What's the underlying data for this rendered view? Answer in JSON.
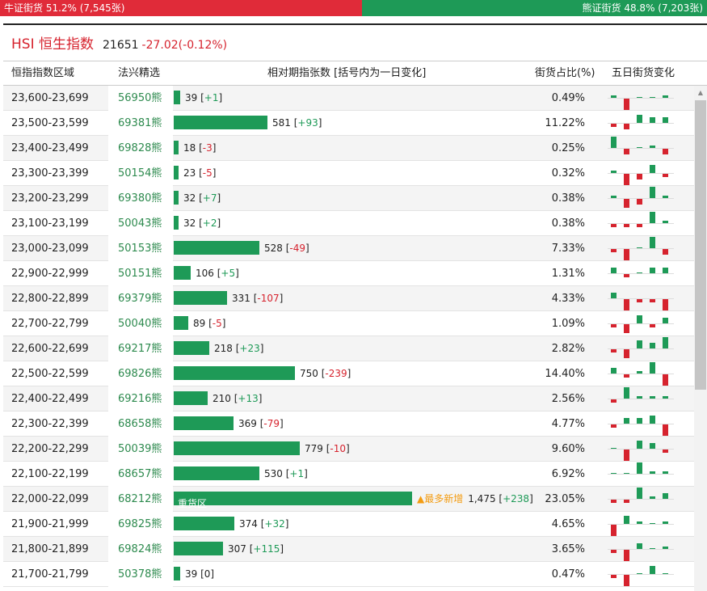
{
  "ratio": {
    "bull_text": "牛证街货 51.2% (7,545张)",
    "bull_pct": 51.2,
    "bear_text": "熊证街货 48.8% (7,203张)",
    "bear_pct": 48.8
  },
  "header": {
    "title": "HSI 恒生指数",
    "index_value": "21651",
    "index_change": "-27.02(-0.12%)"
  },
  "columns": {
    "range": "恒指指数区域",
    "pick": "法兴精选",
    "change": "相对期指张数 [括号内为一日变化]",
    "share": "街货占比(%)",
    "five_day": "五日街货变化"
  },
  "max_count": 1475,
  "rows": [
    {
      "range": "23,600-23,699",
      "code": "56950熊",
      "count": 39,
      "count_text": "39",
      "delta": "+1",
      "pct": "0.49%",
      "spark": [
        1,
        -4,
        0,
        0,
        1
      ]
    },
    {
      "range": "23,500-23,599",
      "code": "69381熊",
      "count": 581,
      "count_text": "581",
      "delta": "+93",
      "pct": "11.22%",
      "spark": [
        -1,
        -2,
        3,
        2,
        2
      ]
    },
    {
      "range": "23,400-23,499",
      "code": "69828熊",
      "count": 18,
      "count_text": "18",
      "delta": "-3",
      "pct": "0.25%",
      "spark": [
        4,
        -2,
        0,
        1,
        -2
      ]
    },
    {
      "range": "23,300-23,399",
      "code": "50154熊",
      "count": 23,
      "count_text": "23",
      "delta": "-5",
      "pct": "0.32%",
      "spark": [
        1,
        -4,
        -2,
        3,
        -1
      ]
    },
    {
      "range": "23,200-23,299",
      "code": "69380熊",
      "count": 32,
      "count_text": "32",
      "delta": "+7",
      "pct": "0.38%",
      "spark": [
        1,
        -3,
        -2,
        4,
        1
      ]
    },
    {
      "range": "23,100-23,199",
      "code": "50043熊",
      "count": 32,
      "count_text": "32",
      "delta": "+2",
      "pct": "0.38%",
      "spark": [
        -1,
        -1,
        -1,
        4,
        1
      ]
    },
    {
      "range": "23,000-23,099",
      "code": "50153熊",
      "count": 528,
      "count_text": "528",
      "delta": "-49",
      "pct": "7.33%",
      "spark": [
        -1,
        -4,
        0,
        4,
        -2
      ]
    },
    {
      "range": "22,900-22,999",
      "code": "50151熊",
      "count": 106,
      "count_text": "106",
      "delta": "+5",
      "pct": "1.31%",
      "spark": [
        2,
        -1,
        0,
        2,
        2
      ]
    },
    {
      "range": "22,800-22,899",
      "code": "69379熊",
      "count": 331,
      "count_text": "331",
      "delta": "-107",
      "pct": "4.33%",
      "spark": [
        2,
        -4,
        -1,
        -1,
        -4
      ]
    },
    {
      "range": "22,700-22,799",
      "code": "50040熊",
      "count": 89,
      "count_text": "89",
      "delta": "-5",
      "pct": "1.09%",
      "spark": [
        -1,
        -3,
        3,
        -1,
        2
      ]
    },
    {
      "range": "22,600-22,699",
      "code": "69217熊",
      "count": 218,
      "count_text": "218",
      "delta": "+23",
      "pct": "2.82%",
      "spark": [
        -1,
        -3,
        3,
        2,
        4
      ]
    },
    {
      "range": "22,500-22,599",
      "code": "69826熊",
      "count": 750,
      "count_text": "750",
      "delta": "-239",
      "pct": "14.40%",
      "spark": [
        2,
        -1,
        1,
        4,
        -4
      ]
    },
    {
      "range": "22,400-22,499",
      "code": "69216熊",
      "count": 210,
      "count_text": "210",
      "delta": "+13",
      "pct": "2.56%",
      "spark": [
        -1,
        4,
        1,
        1,
        1
      ]
    },
    {
      "range": "22,300-22,399",
      "code": "68658熊",
      "count": 369,
      "count_text": "369",
      "delta": "-79",
      "pct": "4.77%",
      "spark": [
        -1,
        2,
        2,
        3,
        -4
      ]
    },
    {
      "range": "22,200-22,299",
      "code": "50039熊",
      "count": 779,
      "count_text": "779",
      "delta": "-10",
      "pct": "9.60%",
      "spark": [
        0,
        -4,
        3,
        2,
        -1
      ]
    },
    {
      "range": "22,100-22,199",
      "code": "68657熊",
      "count": 530,
      "count_text": "530",
      "delta": "+1",
      "pct": "6.92%",
      "spark": [
        0,
        0,
        4,
        1,
        1
      ]
    },
    {
      "range": "22,000-22,099",
      "code": "68212熊",
      "count": 1475,
      "count_text": "1,475",
      "delta": "+238",
      "pct": "23.05%",
      "label": "重货区",
      "hot": "▲最多新增",
      "spark": [
        -1,
        -1,
        4,
        1,
        2
      ]
    },
    {
      "range": "21,900-21,999",
      "code": "69825熊",
      "count": 374,
      "count_text": "374",
      "delta": "+32",
      "pct": "4.65%",
      "spark": [
        -4,
        3,
        1,
        0,
        1
      ]
    },
    {
      "range": "21,800-21,899",
      "code": "69824熊",
      "count": 307,
      "count_text": "307",
      "delta": "+115",
      "pct": "3.65%",
      "spark": [
        -1,
        -4,
        2,
        0,
        1
      ]
    },
    {
      "range": "21,700-21,799",
      "code": "50378熊",
      "count": 39,
      "count_text": "39",
      "delta": "0",
      "pct": "0.47%",
      "spark": [
        -1,
        -4,
        0,
        3,
        0
      ]
    }
  ],
  "colors": {
    "bull": "#e02b39",
    "bear": "#1e9a57",
    "accent": "#d6232e",
    "hot": "#f39c12"
  }
}
